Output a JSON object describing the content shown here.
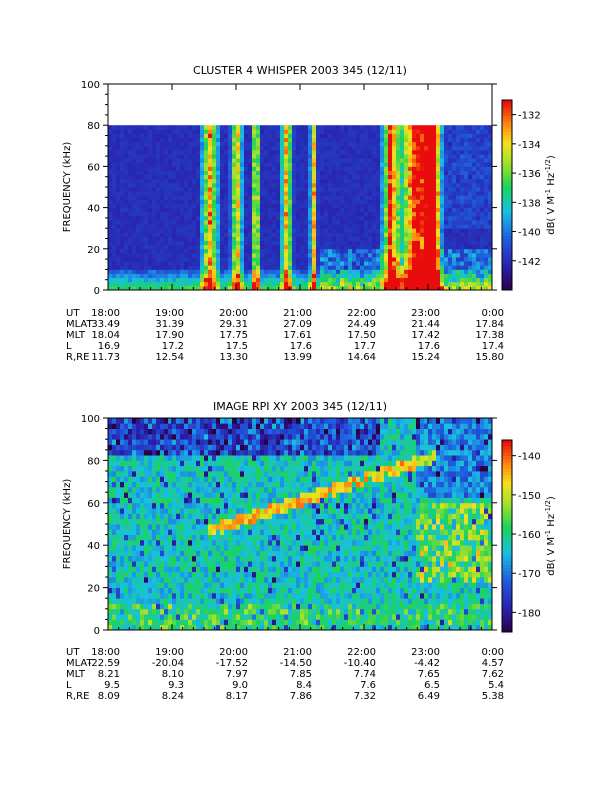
{
  "chart_data": [
    {
      "type": "heatmap",
      "title": "CLUSTER 4 WHISPER 2003 345 (12/11)",
      "ylabel": "FREQUENCY (kHz)",
      "ylim": [
        0,
        100
      ],
      "yticks": [
        "0",
        "20",
        "40",
        "60",
        "80",
        "100"
      ],
      "colorbar": {
        "label_parts": [
          "dB( V M",
          "-1",
          " Hz",
          "-1/2",
          ")"
        ],
        "range": [
          -144,
          -131
        ],
        "ticks": [
          "-132",
          "-134",
          "-136",
          "-138",
          "-140",
          "-142"
        ]
      },
      "data_top_khz": 80,
      "ephemeris": {
        "labels": [
          "UT",
          "MLAT",
          "MLT",
          "L",
          "R,RE"
        ],
        "columns": [
          [
            "18:00",
            "33.49",
            "18.04",
            "16.9",
            "11.73"
          ],
          [
            "19:00",
            "31.39",
            "17.90",
            "17.2",
            "12.54"
          ],
          [
            "20:00",
            "29.31",
            "17.75",
            "17.5",
            "13.30"
          ],
          [
            "21:00",
            "27.09",
            "17.61",
            "17.6",
            "13.99"
          ],
          [
            "22:00",
            "24.49",
            "17.50",
            "17.7",
            "14.64"
          ],
          [
            "23:00",
            "21.44",
            "17.42",
            "17.6",
            "15.24"
          ],
          [
            "0:00",
            "17.84",
            "17.38",
            "17.4",
            "15.80"
          ]
        ]
      }
    },
    {
      "type": "heatmap",
      "title": "IMAGE RPI XY 2003 345 (12/11)",
      "ylabel": "FREQUENCY (kHz)",
      "ylim": [
        0,
        100
      ],
      "yticks": [
        "0",
        "20",
        "40",
        "60",
        "80",
        "100"
      ],
      "colorbar": {
        "label_parts": [
          "dB( V M",
          "-1",
          " Hz",
          "-1/2",
          ")"
        ],
        "range": [
          -185,
          -136
        ],
        "ticks": [
          "-140",
          "-150",
          "-160",
          "-170",
          "-180"
        ]
      },
      "data_top_khz": 100,
      "ephemeris": {
        "labels": [
          "UT",
          "MLAT",
          "MLT",
          "L",
          "R,RE"
        ],
        "columns": [
          [
            "18:00",
            "-22.59",
            "8.21",
            "9.5",
            "8.09"
          ],
          [
            "19:00",
            "-20.04",
            "8.10",
            "9.3",
            "8.24"
          ],
          [
            "20:00",
            "-17.52",
            "7.97",
            "9.0",
            "8.17"
          ],
          [
            "21:00",
            "-14.50",
            "7.85",
            "8.4",
            "7.86"
          ],
          [
            "22:00",
            "-10.40",
            "7.74",
            "7.6",
            "7.32"
          ],
          [
            "23:00",
            "-4.42",
            "7.65",
            "6.5",
            "6.49"
          ],
          [
            "0:00",
            "4.57",
            "7.62",
            "5.4",
            "5.38"
          ]
        ]
      }
    }
  ]
}
